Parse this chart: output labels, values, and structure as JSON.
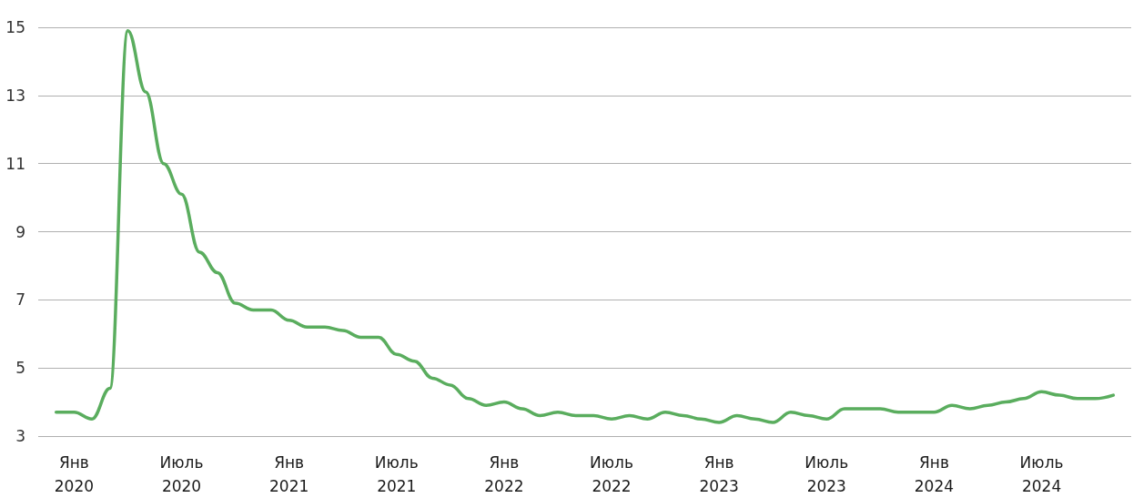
{
  "chart_data": {
    "type": "line",
    "x": [
      "2019-12",
      "2020-01",
      "2020-02",
      "2020-03",
      "2020-04",
      "2020-05",
      "2020-06",
      "2020-07",
      "2020-08",
      "2020-09",
      "2020-10",
      "2020-11",
      "2020-12",
      "2021-01",
      "2021-02",
      "2021-03",
      "2021-04",
      "2021-05",
      "2021-06",
      "2021-07",
      "2021-08",
      "2021-09",
      "2021-10",
      "2021-11",
      "2021-12",
      "2022-01",
      "2022-02",
      "2022-03",
      "2022-04",
      "2022-05",
      "2022-06",
      "2022-07",
      "2022-08",
      "2022-09",
      "2022-10",
      "2022-11",
      "2022-12",
      "2023-01",
      "2023-02",
      "2023-03",
      "2023-04",
      "2023-05",
      "2023-06",
      "2023-07",
      "2023-08",
      "2023-09",
      "2023-10",
      "2023-11",
      "2023-12",
      "2024-01",
      "2024-02",
      "2024-03",
      "2024-04",
      "2024-05",
      "2024-06",
      "2024-07",
      "2024-08",
      "2024-09",
      "2024-10",
      "2024-11"
    ],
    "series": [
      {
        "color": "#5aad5e",
        "values": [
          3.7,
          3.7,
          3.5,
          4.4,
          14.9,
          13.1,
          11.0,
          10.1,
          8.4,
          7.8,
          6.9,
          6.7,
          6.7,
          6.4,
          6.2,
          6.2,
          6.1,
          5.9,
          5.9,
          5.4,
          5.2,
          4.7,
          4.5,
          4.1,
          3.9,
          4.0,
          3.8,
          3.6,
          3.7,
          3.6,
          3.6,
          3.5,
          3.6,
          3.5,
          3.7,
          3.6,
          3.5,
          3.4,
          3.6,
          3.5,
          3.4,
          3.7,
          3.6,
          3.5,
          3.8,
          3.8,
          3.8,
          3.7,
          3.7,
          3.7,
          3.9,
          3.8,
          3.9,
          4.0,
          4.1,
          4.3,
          4.2,
          4.1,
          4.1,
          4.2
        ]
      }
    ],
    "xlim": [
      "2019-11",
      "2024-12"
    ],
    "xticks": [
      {
        "value": "2020-01",
        "label": "Янв\n2020"
      },
      {
        "value": "2020-07",
        "label": "Июль\n2020"
      },
      {
        "value": "2021-01",
        "label": "Янв\n2021"
      },
      {
        "value": "2021-07",
        "label": "Июль\n2021"
      },
      {
        "value": "2022-01",
        "label": "Янв\n2022"
      },
      {
        "value": "2022-07",
        "label": "Июль\n2022"
      },
      {
        "value": "2023-01",
        "label": "Янв\n2023"
      },
      {
        "value": "2023-07",
        "label": "Июль\n2023"
      },
      {
        "value": "2024-01",
        "label": "Янв\n2024"
      },
      {
        "value": "2024-07",
        "label": "Июль\n2024"
      }
    ],
    "ylim": [
      3,
      15
    ],
    "yticks": [
      3,
      5,
      7,
      9,
      11,
      13,
      15
    ],
    "grid": "y",
    "marker": "none",
    "line_style": "solid"
  }
}
